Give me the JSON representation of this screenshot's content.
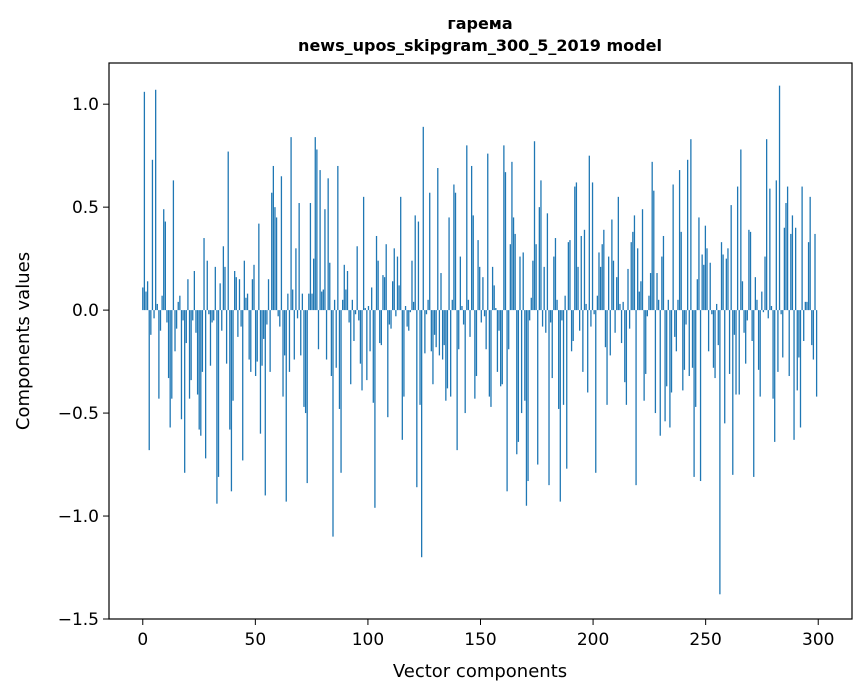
{
  "chart_data": {
    "type": "bar",
    "title": "гарема",
    "subtitle": "news_upos_skipgram_300_5_2019 model",
    "xlabel": "Vector components",
    "ylabel": "Components values",
    "xlim": [
      -15,
      315
    ],
    "ylim": [
      -1.5,
      1.2
    ],
    "xticks": [
      0,
      50,
      100,
      150,
      200,
      250,
      300
    ],
    "xtick_labels": [
      "0",
      "50",
      "100",
      "150",
      "200",
      "250",
      "300"
    ],
    "yticks": [
      -1.5,
      -1.0,
      -0.5,
      0.0,
      0.5,
      1.0
    ],
    "ytick_labels": [
      "−1.5",
      "−1.0",
      "−0.5",
      "0.0",
      "0.5",
      "1.0"
    ],
    "bar_color": "#1f77b4",
    "values": [
      0.11,
      1.06,
      0.09,
      0.14,
      -0.68,
      -0.12,
      0.73,
      -0.04,
      1.07,
      0.03,
      -0.43,
      -0.1,
      0.07,
      0.49,
      0.43,
      -0.06,
      -0.33,
      -0.57,
      -0.43,
      0.63,
      -0.2,
      -0.09,
      0.04,
      0.07,
      -0.53,
      -0.05,
      -0.79,
      -0.16,
      0.15,
      -0.43,
      -0.34,
      -0.05,
      0.19,
      -0.11,
      -0.41,
      -0.58,
      -0.61,
      -0.3,
      0.35,
      -0.72,
      0.24,
      -0.02,
      -0.27,
      -0.06,
      -0.05,
      0.21,
      -0.94,
      -0.81,
      0.13,
      -0.1,
      0.31,
      0.21,
      -0.26,
      0.77,
      -0.58,
      -0.88,
      -0.44,
      0.19,
      0.16,
      -0.13,
      0.15,
      -0.08,
      -0.73,
      0.24,
      0.06,
      0.08,
      -0.24,
      -0.3,
      0.15,
      0.22,
      -0.32,
      -0.25,
      0.42,
      -0.6,
      -0.27,
      -0.14,
      -0.9,
      -0.07,
      0.15,
      -0.3,
      0.57,
      0.7,
      0.5,
      0.45,
      -0.03,
      -0.08,
      0.65,
      -0.42,
      -0.22,
      -0.93,
      0.08,
      -0.3,
      0.84,
      0.1,
      -0.24,
      0.3,
      -0.04,
      0.52,
      -0.22,
      0.08,
      -0.47,
      -0.5,
      -0.84,
      0.08,
      0.52,
      0.08,
      0.25,
      0.84,
      0.78,
      -0.19,
      0.68,
      0.09,
      0.1,
      0.49,
      -0.24,
      0.64,
      0.23,
      -0.32,
      -1.1,
      0.05,
      -0.28,
      0.7,
      -0.48,
      -0.79,
      0.05,
      0.22,
      0.1,
      0.19,
      -0.06,
      -0.36,
      0.05,
      -0.15,
      -0.02,
      0.31,
      -0.05,
      -0.26,
      -0.39,
      0.55,
      0.01,
      -0.34,
      0.02,
      -0.2,
      0.11,
      -0.45,
      -0.96,
      0.36,
      0.24,
      -0.16,
      -0.17,
      0.17,
      0.16,
      0.32,
      -0.52,
      -0.07,
      -0.09,
      0.14,
      0.3,
      -0.03,
      0.26,
      0.12,
      0.55,
      -0.63,
      -0.42,
      0.02,
      -0.08,
      -0.1,
      -0.01,
      0.24,
      0.04,
      0.46,
      -0.86,
      0.43,
      -0.46,
      -1.2,
      0.89,
      -0.21,
      -0.02,
      0.05,
      0.57,
      -0.2,
      -0.36,
      -0.12,
      -0.18,
      0.69,
      -0.22,
      0.18,
      -0.24,
      -0.17,
      -0.44,
      -0.38,
      0.45,
      -0.42,
      0.05,
      0.61,
      0.57,
      -0.68,
      -0.19,
      0.26,
      0.02,
      -0.07,
      -0.5,
      0.8,
      0.05,
      -0.13,
      0.7,
      0.46,
      -0.43,
      -0.32,
      0.34,
      0.21,
      -0.06,
      0.16,
      -0.03,
      -0.19,
      0.76,
      -0.42,
      -0.47,
      0.21,
      0.12,
      0.01,
      -0.3,
      -0.1,
      -0.37,
      -0.36,
      0.8,
      0.67,
      -0.88,
      -0.19,
      0.32,
      0.72,
      0.45,
      0.37,
      -0.7,
      -0.64,
      0.26,
      -0.5,
      0.28,
      -0.44,
      -0.95,
      -0.83,
      -0.05,
      0.06,
      0.24,
      0.82,
      0.32,
      -0.75,
      0.5,
      0.63,
      -0.08,
      0.21,
      -0.11,
      0.47,
      -0.85,
      -0.06,
      -0.33,
      0.26,
      0.35,
      0.05,
      -0.48,
      -0.93,
      -0.05,
      -0.46,
      0.07,
      -0.77,
      0.33,
      0.34,
      -0.2,
      -0.15,
      0.6,
      0.62,
      0.21,
      -0.1,
      0.36,
      -0.3,
      0.39,
      0.03,
      -0.4,
      0.75,
      -0.08,
      0.62,
      -0.02,
      -0.79,
      0.07,
      0.28,
      0.21,
      0.32,
      0.39,
      -0.18,
      -0.46,
      0.26,
      -0.22,
      0.44,
      0.24,
      -0.11,
      0.16,
      0.55,
      0.03,
      -0.16,
      0.04,
      -0.35,
      -0.46,
      0.2,
      -0.09,
      0.33,
      0.38,
      0.46,
      -0.85,
      0.3,
      0.09,
      0.14,
      0.49,
      -0.44,
      -0.31,
      -0.03,
      0.07,
      0.18,
      0.72,
      0.58,
      -0.5,
      0.18,
      0.05,
      -0.61,
      0.26,
      0.36,
      -0.54,
      -0.37,
      0.05,
      -0.57,
      -0.4,
      0.61,
      -0.13,
      -0.2,
      0.05,
      0.68,
      0.38,
      -0.39,
      -0.29,
      -0.07,
      0.73,
      -0.32,
      0.83,
      -0.28,
      -0.81,
      -0.47,
      0.15,
      0.45,
      -0.83,
      0.27,
      0.22,
      0.41,
      0.3,
      -0.2,
      0.23,
      -0.02,
      -0.28,
      -0.33,
      0.03,
      -0.17,
      -1.38,
      0.33,
      0.27,
      -0.55,
      0.25,
      0.3,
      -0.31,
      0.51,
      -0.8,
      -0.12,
      -0.41,
      0.6,
      -0.41,
      0.78,
      0.14,
      -0.11,
      -0.26,
      -0.05,
      0.39,
      0.38,
      -0.15,
      -0.81,
      0.16,
      0.05,
      -0.29,
      -0.42,
      0.09,
      -0.01,
      0.26,
      0.83,
      -0.04,
      0.59,
      0.02,
      -0.43,
      -0.64,
      0.63,
      -0.3,
      1.09,
      -0.02,
      -0.23,
      0.4,
      0.52,
      0.6,
      -0.32,
      0.37,
      0.46,
      -0.63,
      0.4,
      -0.39,
      -0.23,
      -0.57,
      0.6,
      -0.15,
      0.04,
      0.04,
      0.33,
      0.55,
      -0.17,
      -0.24,
      0.37,
      -0.42
    ]
  }
}
